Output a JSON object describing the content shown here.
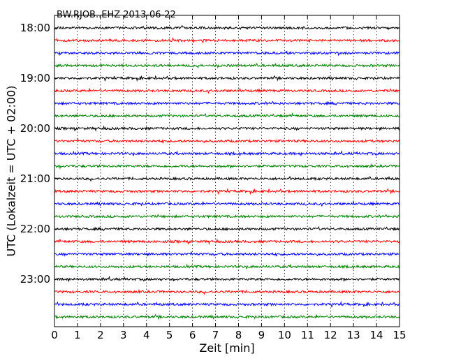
{
  "chart_data": {
    "type": "line",
    "title": "BW.RJOB..EHZ 2013-06-22",
    "xlabel": "Zeit  [min]",
    "ylabel": "UTC (Lokalzeit = UTC + 02:00)",
    "xlim": [
      0,
      15
    ],
    "x_ticks": [
      0,
      1,
      2,
      3,
      4,
      5,
      6,
      7,
      8,
      9,
      10,
      11,
      12,
      13,
      14,
      15
    ],
    "x_tick_labels": [
      "0",
      "1",
      "2",
      "3",
      "4",
      "5",
      "6",
      "7",
      "8",
      "9",
      "10",
      "11",
      "12",
      "13",
      "14",
      "15"
    ],
    "y_tick_labels": [
      "18:00",
      "19:00",
      "20:00",
      "21:00",
      "22:00",
      "23:00"
    ],
    "grid": "vertical dotted",
    "trace_start_times": [
      "18:00",
      "18:15",
      "18:30",
      "18:45",
      "19:00",
      "19:15",
      "19:30",
      "19:45",
      "20:00",
      "20:15",
      "20:30",
      "20:45",
      "21:00",
      "21:15",
      "21:30",
      "21:45",
      "22:00",
      "22:15",
      "22:30",
      "22:45",
      "23:00",
      "23:15",
      "23:30",
      "23:45"
    ],
    "trace_colors": [
      "#000000",
      "#ff0000",
      "#0000ff",
      "#008000"
    ]
  }
}
